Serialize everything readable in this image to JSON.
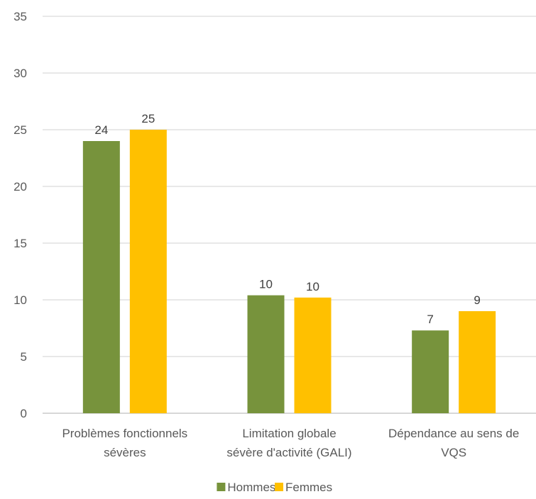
{
  "chart_data": {
    "type": "bar",
    "categories": [
      [
        "Problèmes fonctionnels",
        "sévères"
      ],
      [
        "Limitation globale",
        "sévère d'activité (GALI)"
      ],
      [
        "Dépendance au sens de",
        "VQS"
      ]
    ],
    "series": [
      {
        "name": "Hommes",
        "color": "#77933c",
        "values": [
          24,
          10.4,
          7.3
        ],
        "labels": [
          "24",
          "10",
          "7"
        ]
      },
      {
        "name": "Femmes",
        "color": "#ffc000",
        "values": [
          25,
          10.2,
          9
        ],
        "labels": [
          "25",
          "10",
          "9"
        ]
      }
    ],
    "ylim": [
      0,
      35
    ],
    "yticks": [
      0,
      5,
      10,
      15,
      20,
      25,
      30,
      35
    ],
    "grid": true,
    "legend": "bottom",
    "title": "",
    "xlabel": "",
    "ylabel": ""
  }
}
